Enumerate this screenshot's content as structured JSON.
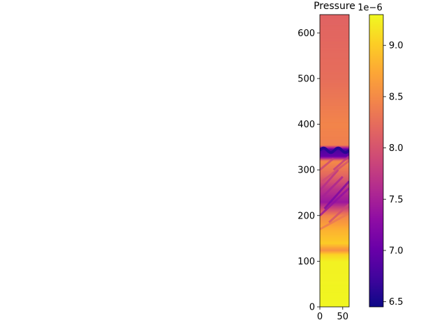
{
  "chart_data": {
    "type": "heatmap",
    "title": "Pressure",
    "xlabel": "",
    "ylabel": "",
    "xlim": [
      0,
      64
    ],
    "ylim": [
      0,
      640
    ],
    "x_ticks": [
      0,
      50
    ],
    "y_ticks": [
      0,
      100,
      200,
      300,
      400,
      500,
      600
    ],
    "colormap": "plasma",
    "colorbar": {
      "range": [
        6.45,
        9.3
      ],
      "ticks": [
        "6.5",
        "7.0",
        "7.5",
        "8.0",
        "8.5",
        "9.0"
      ],
      "tick_values": [
        6.5,
        7.0,
        7.5,
        8.0,
        8.5,
        9.0
      ],
      "offset_label": "1e−6"
    },
    "rows": [
      {
        "y": 0,
        "value": 9.28
      },
      {
        "y": 100,
        "value": 9.25
      },
      {
        "y": 115,
        "value": 9.05
      },
      {
        "y": 125,
        "value": 8.55
      },
      {
        "y": 140,
        "value": 9.0
      },
      {
        "y": 170,
        "value": 8.8
      },
      {
        "y": 200,
        "value": 8.45
      },
      {
        "y": 230,
        "value": 7.4
      },
      {
        "y": 260,
        "value": 7.7
      },
      {
        "y": 290,
        "value": 8.2
      },
      {
        "y": 320,
        "value": 8.5
      },
      {
        "y": 330,
        "value": 7.0
      },
      {
        "y": 345,
        "value": 6.8
      },
      {
        "y": 355,
        "value": 8.4
      },
      {
        "y": 400,
        "value": 8.45
      },
      {
        "y": 500,
        "value": 8.25
      },
      {
        "y": 640,
        "value": 8.15
      }
    ]
  }
}
